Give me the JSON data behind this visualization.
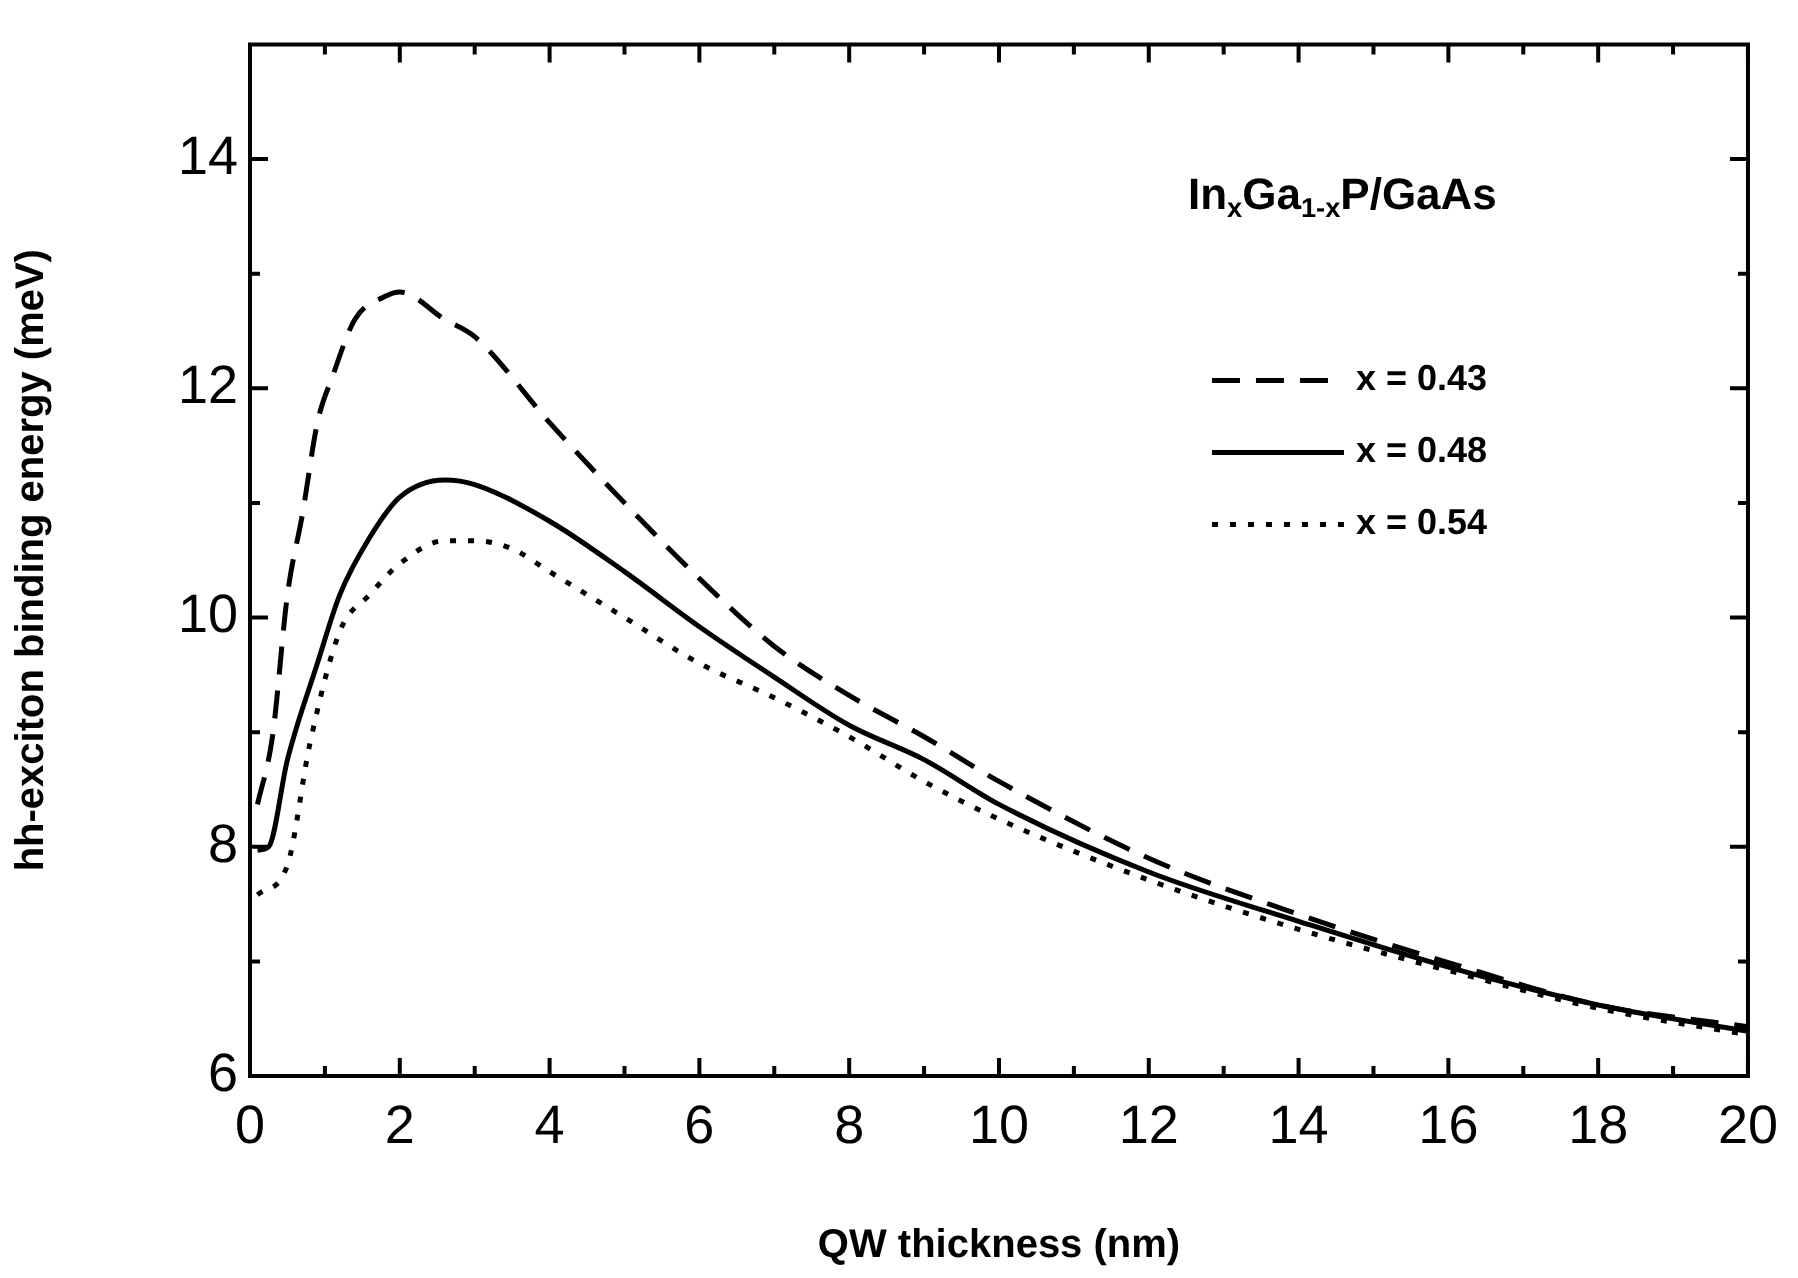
{
  "chart_data": {
    "type": "line",
    "xlabel": "QW thickness (nm)",
    "ylabel": "hh-exciton binding energy (meV)",
    "legend_title": "In$_{x}$Ga$_{1-x}$P/GaAs",
    "legend": "top right",
    "marker": "none",
    "xlim": [
      0,
      20
    ],
    "ylim": [
      6,
      15
    ],
    "xticks": [
      0,
      {
        "value": 1,
        "label": null
      },
      2,
      {
        "value": 3,
        "label": null
      },
      4,
      {
        "value": 5,
        "label": null
      },
      6,
      {
        "value": 7,
        "label": null
      },
      8,
      {
        "value": 9,
        "label": null
      },
      10,
      {
        "value": 11,
        "label": null
      },
      12,
      {
        "value": 13,
        "label": null
      },
      14,
      {
        "value": 15,
        "label": null
      },
      16,
      {
        "value": 17,
        "label": null
      },
      18,
      {
        "value": 19,
        "label": null
      },
      20
    ],
    "yticks": [
      6,
      {
        "value": 7,
        "label": null
      },
      8,
      {
        "value": 9,
        "label": null
      },
      10,
      {
        "value": 11,
        "label": null
      },
      12,
      {
        "value": 13,
        "label": null
      },
      14
    ],
    "series": [
      {
        "name": "x = 0.43",
        "color": "#000000",
        "line_style": "dashed",
        "x": [
          0.1,
          0.3,
          0.5,
          0.7,
          0.9,
          1.1,
          1.4,
          1.8,
          2,
          2.6,
          3,
          4,
          5,
          6,
          7,
          8,
          9,
          10,
          12,
          14,
          16,
          18,
          20
        ],
        "values": [
          8.37,
          8.96,
          10.2,
          10.9,
          11.7,
          12.1,
          12.6,
          12.8,
          12.84,
          12.6,
          12.45,
          11.7,
          11.0,
          10.34,
          9.75,
          9.32,
          8.96,
          8.57,
          7.9,
          7.41,
          6.99,
          6.62,
          6.43
        ]
      },
      {
        "name": "x = 0.48",
        "color": "#000000",
        "line_style": "solid",
        "x": [
          0.1,
          0.25,
          0.5,
          0.9,
          1.2,
          1.6,
          2,
          2.6,
          3,
          4,
          5,
          6,
          7,
          8,
          9,
          10,
          12,
          14,
          16,
          18,
          20
        ],
        "values": [
          7.97,
          8.0,
          8.76,
          9.6,
          10.2,
          10.7,
          11.05,
          11.2,
          11.16,
          10.84,
          10.4,
          9.92,
          9.48,
          9.06,
          8.76,
          8.37,
          7.78,
          7.35,
          6.95,
          6.62,
          6.39
        ]
      },
      {
        "name": "x = 0.54",
        "color": "#000000",
        "line_style": "dotted",
        "x": [
          0.1,
          0.5,
          0.8,
          1.2,
          1.6,
          2,
          2.6,
          3,
          3.5,
          4,
          5,
          6,
          7,
          8,
          9,
          10,
          12,
          14,
          16,
          18,
          20
        ],
        "values": [
          7.58,
          7.84,
          8.9,
          9.88,
          10.2,
          10.47,
          10.67,
          10.67,
          10.6,
          10.4,
          10.0,
          9.6,
          9.3,
          8.96,
          8.57,
          8.24,
          7.71,
          7.28,
          6.92,
          6.59,
          6.36
        ]
      }
    ]
  }
}
